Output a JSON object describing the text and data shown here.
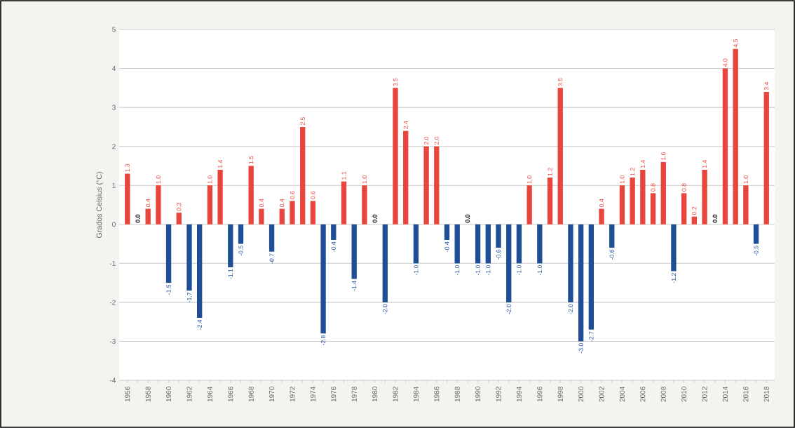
{
  "chart_data": {
    "type": "bar",
    "ylabel": "Grados Celsius (°C)",
    "categories": [
      "1956",
      null,
      "1958",
      null,
      "1960",
      null,
      "1962",
      null,
      "1964",
      null,
      "1966",
      null,
      "1968",
      null,
      "1970",
      null,
      "1972",
      null,
      "1974",
      null,
      "1976",
      null,
      "1978",
      null,
      "1980",
      null,
      "1982",
      null,
      "1984",
      null,
      "1986",
      null,
      "1988",
      null,
      "1990",
      null,
      "1992",
      null,
      "1994",
      null,
      "1996",
      null,
      "1998",
      null,
      "2000",
      null,
      "2002",
      null,
      "2004",
      null,
      "2006",
      null,
      "2008",
      null,
      "2010",
      null,
      "2012",
      null,
      "2014",
      null,
      "2016",
      null,
      "2018"
    ],
    "values": [
      1.3,
      0.0,
      0.4,
      1.0,
      -1.5,
      0.3,
      -1.7,
      -2.4,
      1.0,
      1.4,
      -1.1,
      -0.5,
      1.5,
      0.4,
      -0.7,
      0.4,
      0.6,
      2.5,
      0.6,
      -2.8,
      -0.4,
      1.1,
      -1.4,
      1.0,
      0.0,
      -2.0,
      3.5,
      2.4,
      -1.0,
      2.0,
      2.0,
      -0.4,
      -1.0,
      0.0,
      -1.0,
      -1.0,
      -0.6,
      -2.0,
      -1.0,
      1.0,
      -1.0,
      1.2,
      3.5,
      -2.0,
      -3.0,
      -2.7,
      0.4,
      -0.6,
      1.0,
      1.2,
      1.4,
      0.8,
      1.6,
      -1.2,
      0.8,
      0.2,
      1.4,
      0.0,
      4.0,
      4.5,
      1.0,
      -0.5,
      3.4
    ],
    "colors": [
      "#e8453c",
      "#e8453c",
      "#e8453c",
      "#e8453c",
      "#1f4e96",
      "#e8453c",
      "#1f4e96",
      "#1f4e96",
      "#e8453c",
      "#e8453c",
      "#1f4e96",
      "#1f4e96",
      "#e8453c",
      "#e8453c",
      "#1f4e96",
      "#e8453c",
      "#e8453c",
      "#e8453c",
      "#e8453c",
      "#1f4e96",
      "#1f4e96",
      "#e8453c",
      "#1f4e96",
      "#e8453c",
      "#e8453c",
      "#1f4e96",
      "#e8453c",
      "#e8453c",
      "#1f4e96",
      "#e8453c",
      "#e8453c",
      "#1f4e96",
      "#1f4e96",
      "#e8453c",
      "#1f4e96",
      "#1f4e96",
      "#1f4e96",
      "#1f4e96",
      "#1f4e96",
      "#e8453c",
      "#1f4e96",
      "#e8453c",
      "#e8453c",
      "#1f4e96",
      "#1f4e96",
      "#1f4e96",
      "#e8453c",
      "#1f4e96",
      "#e8453c",
      "#e8453c",
      "#e8453c",
      "#e8453c",
      "#e8453c",
      "#1f4e96",
      "#e8453c",
      "#e8453c",
      "#e8453c",
      "#e8453c",
      "#e8453c",
      "#e8453c",
      "#e8453c",
      "#1f4e96",
      "#e8453c"
    ],
    "value_labels": [
      "1.3",
      "0.0",
      "0.4",
      "1.0",
      "-1.5",
      "0.3",
      "-1.7",
      "-2.4",
      "1.0",
      "1.4",
      "-1.1",
      "-0.5",
      "1.5",
      "0.4",
      "-0.7",
      "0.4",
      "0.6",
      "2.5",
      "0.6",
      "-2.8",
      "-0.4",
      "1.1",
      "-1.4",
      "1.0",
      "0.0",
      "-2.0",
      "3.5",
      "2.4",
      "-1.0",
      "2.0",
      "2.0",
      "-0.4",
      "-1.0",
      "0.0",
      "-1.0",
      "-1.0",
      "-0.6",
      "-2.0",
      "-1.0",
      "1.0",
      "-1.0",
      "1.2",
      "3.5",
      "-2.0",
      "-3.0",
      "-2.7",
      "0.4",
      "-0.6",
      "1.0",
      "1.2",
      "1.4",
      "0.8",
      "1.6",
      "-1.2",
      "0.8",
      "0.2",
      "1.4",
      "0.0",
      "4.0",
      "4.5",
      "1.0",
      "-0.5",
      "3.4"
    ],
    "ylim": [
      -4,
      5
    ],
    "yticks": [
      -4,
      -3,
      -2,
      -1,
      0,
      1,
      2,
      3,
      4,
      5
    ],
    "grid": "y"
  }
}
